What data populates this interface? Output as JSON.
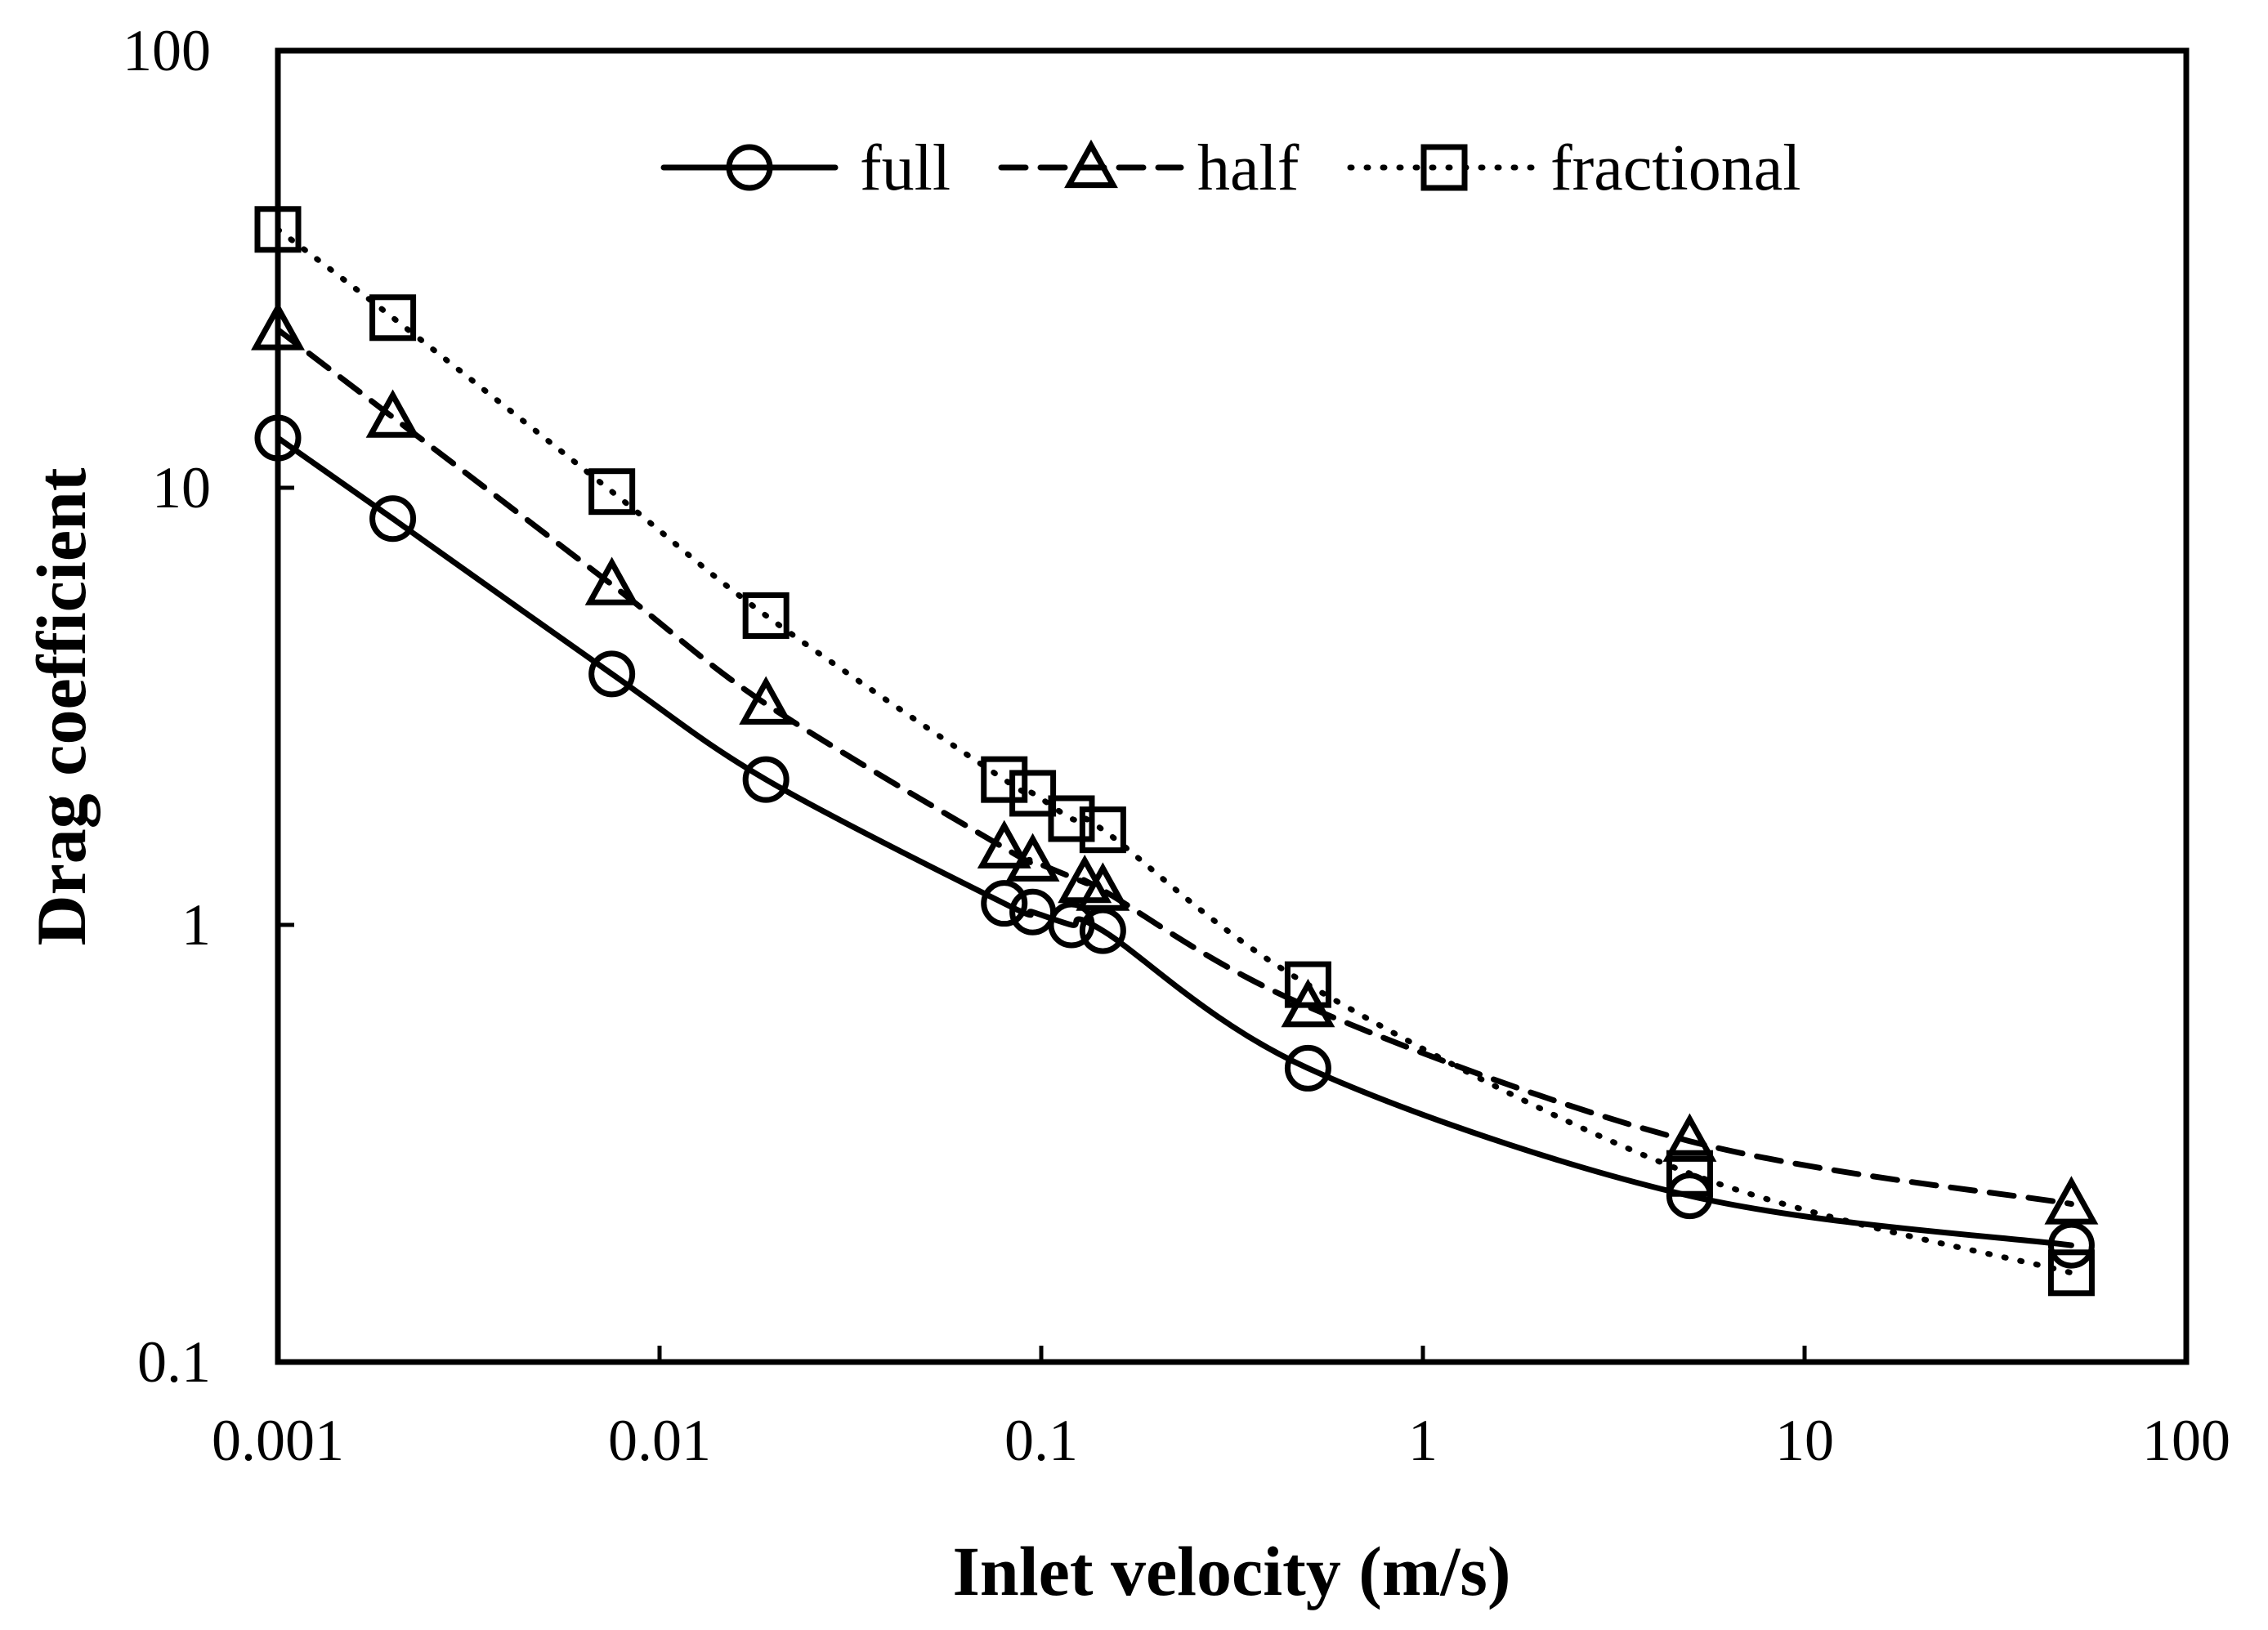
{
  "chart_data": {
    "type": "line",
    "xscale": "log",
    "yscale": "log",
    "xlabel": "Inlet velocity (m/s)",
    "ylabel": "Drag coefficient",
    "xlim": [
      0.001,
      100
    ],
    "ylim": [
      0.1,
      100
    ],
    "x_ticks": [
      0.001,
      0.01,
      0.1,
      1,
      10,
      100
    ],
    "x_tick_labels": [
      "0.001",
      "0.01",
      "0.1",
      "1",
      "10",
      "100"
    ],
    "y_ticks": [
      0.1,
      1,
      10,
      100
    ],
    "y_tick_labels": [
      "0.1",
      "1",
      "10",
      "100"
    ],
    "legend_position": "top",
    "series": [
      {
        "name": "full",
        "marker": "circle",
        "line": "solid",
        "x": [
          0.001,
          0.002,
          0.0075,
          0.019,
          0.08,
          0.095,
          0.12,
          0.145,
          0.5,
          5,
          50
        ],
        "y": [
          13,
          8.5,
          3.75,
          2.15,
          1.12,
          1.07,
          1.0,
          0.97,
          0.47,
          0.24,
          0.185
        ]
      },
      {
        "name": "half",
        "marker": "triangle",
        "line": "dashed",
        "x": [
          0.001,
          0.002,
          0.0075,
          0.019,
          0.08,
          0.095,
          0.13,
          0.145,
          0.5,
          5,
          50
        ],
        "y": [
          23,
          14.5,
          6.0,
          3.2,
          1.5,
          1.4,
          1.25,
          1.2,
          0.65,
          0.32,
          0.23
        ]
      },
      {
        "name": "fractional",
        "marker": "square",
        "line": "dotted",
        "x": [
          0.001,
          0.002,
          0.0075,
          0.019,
          0.08,
          0.095,
          0.12,
          0.145,
          0.5,
          5,
          50
        ],
        "y": [
          39,
          24.5,
          9.8,
          5.1,
          2.15,
          2.0,
          1.75,
          1.65,
          0.73,
          0.27,
          0.16
        ]
      }
    ]
  }
}
